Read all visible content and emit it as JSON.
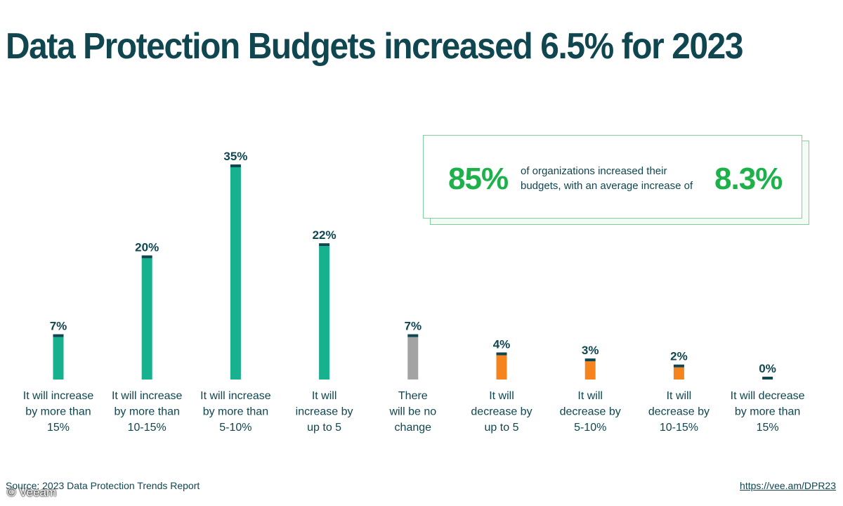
{
  "header": {
    "title": "Data Protection Budgets increased 6.5% for 2023"
  },
  "callout": {
    "left_stat": "85%",
    "text": "of organizations increased their budgets, with an average increase of",
    "right_stat": "8.3%"
  },
  "footer": {
    "source": "Source: 2023 Data Protection Trends Report",
    "url": "https://vee.am/DPR23",
    "watermark": "© Veeam"
  },
  "colors": {
    "increase": "#17b18e",
    "no_change": "#a3a3a3",
    "decrease": "#f5841f",
    "cap": "#0f4650",
    "text": "#0f4650"
  },
  "chart_data": {
    "type": "bar",
    "title": "Data Protection Budgets increased 6.5% for 2023",
    "xlabel": "",
    "ylabel": "",
    "ylim": [
      0,
      35
    ],
    "grid": false,
    "categories": [
      [
        "It will increase",
        "by more than",
        "15%"
      ],
      [
        "It will increase",
        "by more than",
        "10-15%"
      ],
      [
        "It will increase",
        "by more than",
        "5-10%"
      ],
      [
        "It will",
        "increase by",
        "up to 5"
      ],
      [
        "There",
        "will be no",
        "change"
      ],
      [
        "It will",
        "decrease by",
        "up to 5"
      ],
      [
        "It will",
        "decrease by",
        "5-10%"
      ],
      [
        "It will",
        "decrease by",
        "10-15%"
      ],
      [
        "It will decrease",
        "by more than",
        "15%"
      ]
    ],
    "values": [
      7,
      20,
      35,
      22,
      7,
      4,
      3,
      2,
      0
    ],
    "value_labels": [
      "7%",
      "20%",
      "35%",
      "22%",
      "7%",
      "4%",
      "3%",
      "2%",
      "0%"
    ],
    "bar_kind": [
      "increase",
      "increase",
      "increase",
      "increase",
      "no_change",
      "decrease",
      "decrease",
      "decrease",
      "decrease"
    ]
  }
}
